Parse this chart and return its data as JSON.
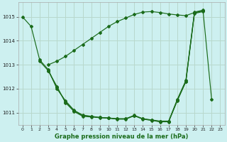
{
  "title": "Graphe pression niveau de la mer (hPa)",
  "bg_color": "#cdf0f0",
  "grid_color": "#b8d8cc",
  "line_color": "#1a6b1a",
  "xlim": [
    -0.5,
    23.5
  ],
  "ylim": [
    1010.5,
    1015.6
  ],
  "yticks": [
    1011,
    1012,
    1013,
    1014,
    1015
  ],
  "xticks": [
    0,
    1,
    2,
    3,
    4,
    5,
    6,
    7,
    8,
    9,
    10,
    11,
    12,
    13,
    14,
    15,
    16,
    17,
    18,
    19,
    20,
    21,
    22,
    23
  ],
  "series": [
    {
      "x": [
        0,
        1,
        2,
        3,
        4,
        5,
        6,
        7,
        8,
        9,
        10,
        11,
        12,
        13,
        14,
        15,
        16,
        17,
        18,
        19,
        20,
        21
      ],
      "y": [
        1015.0,
        1014.6,
        1013.2,
        1012.8,
        1012.0,
        1011.5,
        1011.1,
        1010.9,
        1010.85,
        1010.8,
        1010.78,
        1010.75,
        1010.75,
        1010.88,
        1010.75,
        1010.7,
        1010.65,
        1010.65,
        1011.55,
        1012.35,
        1015.2,
        1015.28
      ]
    },
    {
      "x": [
        2,
        3,
        4,
        5,
        6,
        7,
        8,
        9,
        10,
        11,
        12,
        13,
        14,
        15,
        16,
        17,
        18,
        19,
        20,
        21
      ],
      "y": [
        1013.15,
        1012.75,
        1012.05,
        1011.45,
        1011.08,
        1010.88,
        1010.84,
        1010.8,
        1010.78,
        1010.74,
        1010.74,
        1010.89,
        1010.74,
        1010.69,
        1010.63,
        1010.63,
        1011.52,
        1012.3,
        1015.17,
        1015.25
      ]
    },
    {
      "x": [
        3,
        4,
        5,
        6,
        7,
        8,
        9,
        10,
        11,
        12,
        13,
        14,
        15,
        16,
        17,
        18,
        19,
        20,
        21
      ],
      "y": [
        1012.75,
        1012.1,
        1011.42,
        1011.05,
        1010.85,
        1010.82,
        1010.79,
        1010.77,
        1010.73,
        1010.73,
        1010.87,
        1010.73,
        1010.68,
        1010.62,
        1010.62,
        1011.49,
        1012.29,
        1015.14,
        1015.22
      ]
    },
    {
      "x": [
        3,
        4,
        5,
        6,
        7,
        8,
        9,
        10,
        11,
        12,
        13,
        14,
        15,
        16,
        17,
        18,
        19,
        20,
        21,
        22
      ],
      "y": [
        1013.0,
        1013.15,
        1013.35,
        1013.6,
        1013.85,
        1014.1,
        1014.35,
        1014.6,
        1014.8,
        1014.95,
        1015.1,
        1015.2,
        1015.22,
        1015.18,
        1015.12,
        1015.08,
        1015.05,
        1015.18,
        1015.25,
        1011.55
      ]
    }
  ]
}
